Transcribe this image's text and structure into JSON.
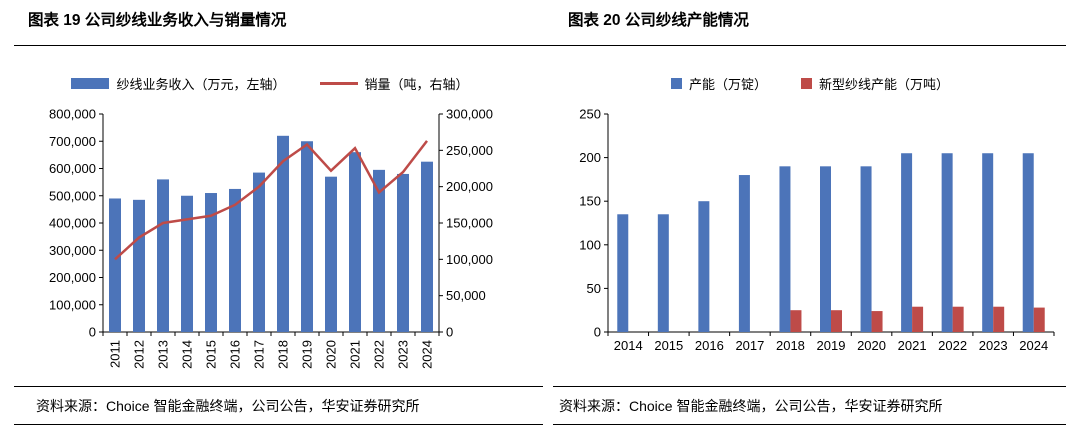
{
  "left": {
    "title": "图表 19 公司纱线业务收入与销量情况",
    "source": "资料来源：Choice 智能金融终端，公司公告，华安证券研究所"
  },
  "right": {
    "title": "图表 20 公司纱线产能情况",
    "source": "资料来源：Choice 智能金融终端，公司公告，华安证券研究所"
  },
  "chart_data": [
    {
      "type": "bar",
      "subtype": "bar-line-combo",
      "title": "图表 19 公司纱线业务收入与销量情况",
      "categories": [
        "2011",
        "2012",
        "2013",
        "2014",
        "2015",
        "2016",
        "2017",
        "2018",
        "2019",
        "2020",
        "2021",
        "2022",
        "2023",
        "2024"
      ],
      "series": [
        {
          "name": "纱线业务收入（万元，左轴）",
          "type": "bar",
          "axis": "left",
          "color": "#4C74B9",
          "values": [
            490000,
            485000,
            560000,
            500000,
            510000,
            525000,
            585000,
            720000,
            700000,
            570000,
            660000,
            595000,
            580000,
            625000
          ]
        },
        {
          "name": "销量（吨，右轴）",
          "type": "line",
          "axis": "right",
          "color": "#BE4B48",
          "values": [
            100000,
            130000,
            150000,
            155000,
            160000,
            175000,
            200000,
            235000,
            258000,
            222000,
            253000,
            192000,
            220000,
            263000
          ]
        }
      ],
      "axes": {
        "left": {
          "min": 0,
          "max": 800000,
          "step": 100000
        },
        "right": {
          "min": 0,
          "max": 300000,
          "step": 50000
        }
      },
      "legend_position": "top",
      "grid": false,
      "x_label_rotation": -90
    },
    {
      "type": "bar",
      "subtype": "grouped-bar",
      "title": "图表 20 公司纱线产能情况",
      "categories": [
        "2014",
        "2015",
        "2016",
        "2017",
        "2018",
        "2019",
        "2020",
        "2021",
        "2022",
        "2023",
        "2024"
      ],
      "series": [
        {
          "name": "产能（万锭）",
          "type": "bar",
          "color": "#4C74B9",
          "values": [
            135,
            135,
            150,
            180,
            190,
            190,
            190,
            205,
            205,
            205,
            205
          ]
        },
        {
          "name": "新型纱线产能（万吨）",
          "type": "bar",
          "color": "#BE4B48",
          "values": [
            null,
            null,
            null,
            null,
            25,
            25,
            24,
            29,
            29,
            29,
            28
          ]
        }
      ],
      "axes": {
        "y": {
          "min": 0,
          "max": 250,
          "step": 50
        }
      },
      "legend_position": "top",
      "grid": false,
      "x_label_rotation": 0
    }
  ]
}
